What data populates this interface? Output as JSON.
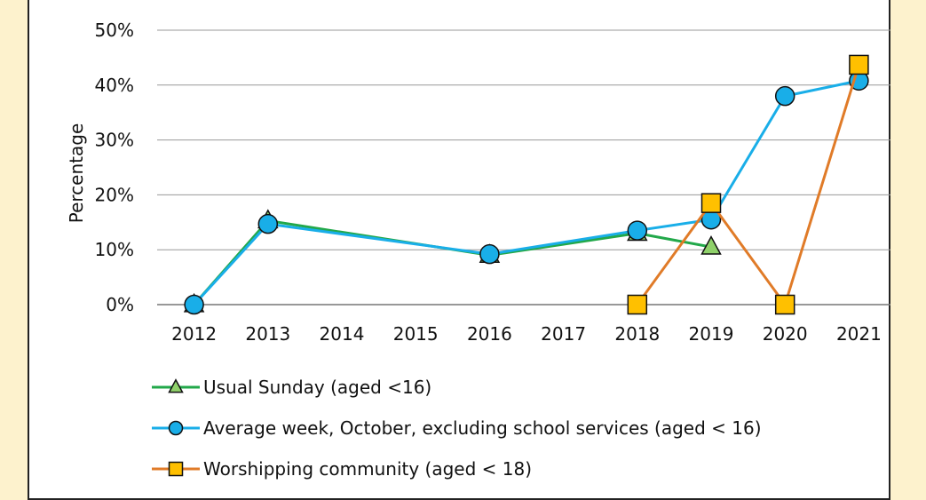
{
  "chart_data": {
    "type": "line",
    "title": "",
    "xlabel": "",
    "ylabel": "Percentage",
    "x": [
      2012,
      2013,
      2014,
      2015,
      2016,
      2017,
      2018,
      2019,
      2020,
      2021
    ],
    "ylim": [
      0,
      50
    ],
    "yticks": [
      "0%",
      "10%",
      "20%",
      "30%",
      "40%",
      "50%"
    ],
    "grid": true,
    "legend_position": "bottom",
    "series": [
      {
        "name": "Usual Sunday (aged <16)",
        "color": "#22a84a",
        "marker": "triangle",
        "marker_fill": "#8fd16a",
        "points": [
          [
            2012,
            0
          ],
          [
            2013,
            15.3
          ],
          [
            2016,
            9
          ],
          [
            2018,
            13
          ],
          [
            2019,
            10.5
          ]
        ]
      },
      {
        "name": "Average week, October, excluding school services (aged < 16)",
        "color": "#19aee8",
        "marker": "circle",
        "marker_fill": "#19aee8",
        "points": [
          [
            2012,
            0
          ],
          [
            2013,
            14.7
          ],
          [
            2016,
            9.2
          ],
          [
            2018,
            13.5
          ],
          [
            2019,
            15.5
          ],
          [
            2020,
            38
          ],
          [
            2021,
            40.8
          ]
        ]
      },
      {
        "name": "Worshipping community (aged < 18)",
        "color": "#e07b28",
        "marker": "square",
        "marker_fill": "#ffc000",
        "points": [
          [
            2018,
            0
          ],
          [
            2019,
            18.5
          ],
          [
            2020,
            0
          ],
          [
            2021,
            43.7
          ]
        ]
      }
    ]
  }
}
